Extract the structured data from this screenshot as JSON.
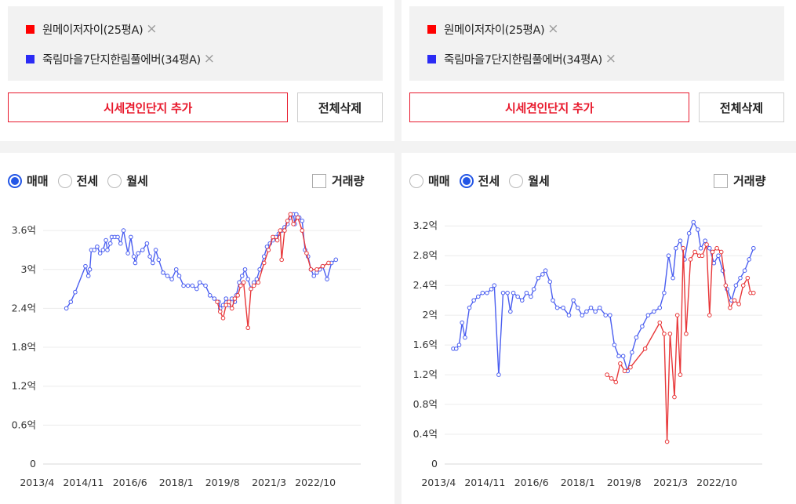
{
  "panels": [
    {
      "legend": [
        {
          "label": "원메이저자이(25평A)",
          "color": "#ff0000"
        },
        {
          "label": "죽림마을7단지한림풀에버(34평A)",
          "color": "#2b2bf5"
        }
      ],
      "remove_icon": "×",
      "add_button": "시세견인단지 추가",
      "delete_all_button": "전체삭제",
      "radios": [
        {
          "label": "매매",
          "selected": true
        },
        {
          "label": "전세",
          "selected": false
        },
        {
          "label": "월세",
          "selected": false
        }
      ],
      "volume_label": "거래량"
    },
    {
      "legend": [
        {
          "label": "원메이저자이(25평A)",
          "color": "#ff0000"
        },
        {
          "label": "죽림마을7단지한림풀에버(34평A)",
          "color": "#2b2bf5"
        }
      ],
      "remove_icon": "×",
      "add_button": "시세견인단지 추가",
      "delete_all_button": "전체삭제",
      "radios": [
        {
          "label": "매매",
          "selected": false
        },
        {
          "label": "전세",
          "selected": true
        },
        {
          "label": "월세",
          "selected": false
        }
      ],
      "volume_label": "거래량"
    }
  ],
  "chart_data": [
    {
      "type": "line",
      "ylim": [
        0,
        4.0
      ],
      "yticks": [
        {
          "v": 0,
          "label": "0"
        },
        {
          "v": 0.6,
          "label": "0.6억"
        },
        {
          "v": 1.2,
          "label": "1.2억"
        },
        {
          "v": 1.8,
          "label": "1.8억"
        },
        {
          "v": 2.4,
          "label": "2.4억"
        },
        {
          "v": 3.0,
          "label": "3억"
        },
        {
          "v": 3.6,
          "label": "3.6억"
        }
      ],
      "xlim": [
        2013.0,
        2024.3
      ],
      "xticks": [
        {
          "v": 2013.25,
          "label": "2013/4"
        },
        {
          "v": 2014.83,
          "label": "2014/11"
        },
        {
          "v": 2016.42,
          "label": "2016/6"
        },
        {
          "v": 2018.0,
          "label": "2018/1"
        },
        {
          "v": 2019.58,
          "label": "2019/8"
        },
        {
          "v": 2021.17,
          "label": "2021/3"
        },
        {
          "v": 2022.75,
          "label": "2022/10"
        }
      ],
      "series": [
        {
          "name": "죽림마을7단지한림풀에버(34평A)",
          "color": "#4a5ef0",
          "points": [
            [
              2014.25,
              2.4
            ],
            [
              2014.4,
              2.5
            ],
            [
              2014.55,
              2.65
            ],
            [
              2014.9,
              3.05
            ],
            [
              2015.0,
              2.9
            ],
            [
              2015.05,
              3.0
            ],
            [
              2015.1,
              3.3
            ],
            [
              2015.2,
              3.3
            ],
            [
              2015.3,
              3.35
            ],
            [
              2015.4,
              3.25
            ],
            [
              2015.5,
              3.3
            ],
            [
              2015.6,
              3.45
            ],
            [
              2015.65,
              3.3
            ],
            [
              2015.75,
              3.4
            ],
            [
              2015.8,
              3.5
            ],
            [
              2015.9,
              3.5
            ],
            [
              2016.0,
              3.5
            ],
            [
              2016.1,
              3.4
            ],
            [
              2016.2,
              3.6
            ],
            [
              2016.35,
              3.25
            ],
            [
              2016.45,
              3.5
            ],
            [
              2016.55,
              3.2
            ],
            [
              2016.6,
              3.1
            ],
            [
              2016.7,
              3.25
            ],
            [
              2016.85,
              3.3
            ],
            [
              2017.0,
              3.4
            ],
            [
              2017.1,
              3.2
            ],
            [
              2017.2,
              3.1
            ],
            [
              2017.3,
              3.3
            ],
            [
              2017.4,
              3.15
            ],
            [
              2017.55,
              2.95
            ],
            [
              2017.7,
              2.9
            ],
            [
              2017.85,
              2.85
            ],
            [
              2018.0,
              3.0
            ],
            [
              2018.1,
              2.9
            ],
            [
              2018.25,
              2.75
            ],
            [
              2018.4,
              2.75
            ],
            [
              2018.55,
              2.75
            ],
            [
              2018.7,
              2.7
            ],
            [
              2018.8,
              2.8
            ],
            [
              2019.0,
              2.75
            ],
            [
              2019.15,
              2.6
            ],
            [
              2019.3,
              2.55
            ],
            [
              2019.45,
              2.5
            ],
            [
              2019.5,
              2.4
            ],
            [
              2019.6,
              2.45
            ],
            [
              2019.7,
              2.55
            ],
            [
              2019.8,
              2.45
            ],
            [
              2019.9,
              2.55
            ],
            [
              2020.0,
              2.5
            ],
            [
              2020.05,
              2.6
            ],
            [
              2020.15,
              2.8
            ],
            [
              2020.25,
              2.9
            ],
            [
              2020.35,
              3.0
            ],
            [
              2020.45,
              2.85
            ],
            [
              2020.55,
              2.7
            ],
            [
              2020.65,
              2.8
            ],
            [
              2020.75,
              2.85
            ],
            [
              2020.85,
              3.0
            ],
            [
              2021.0,
              3.2
            ],
            [
              2021.1,
              3.35
            ],
            [
              2021.2,
              3.4
            ],
            [
              2021.3,
              3.45
            ],
            [
              2021.4,
              3.5
            ],
            [
              2021.5,
              3.55
            ],
            [
              2021.6,
              3.6
            ],
            [
              2021.7,
              3.65
            ],
            [
              2021.8,
              3.7
            ],
            [
              2021.9,
              3.8
            ],
            [
              2022.0,
              3.85
            ],
            [
              2022.05,
              3.7
            ],
            [
              2022.1,
              3.85
            ],
            [
              2022.2,
              3.8
            ],
            [
              2022.3,
              3.75
            ],
            [
              2022.4,
              3.3
            ],
            [
              2022.5,
              3.2
            ],
            [
              2022.6,
              3.0
            ],
            [
              2022.7,
              2.9
            ],
            [
              2022.8,
              2.95
            ],
            [
              2022.9,
              3.0
            ],
            [
              2023.0,
              3.05
            ],
            [
              2023.15,
              2.85
            ],
            [
              2023.3,
              3.1
            ],
            [
              2023.45,
              3.15
            ]
          ]
        },
        {
          "name": "원메이저자이(25평A)",
          "color": "#e8383a",
          "points": [
            [
              2019.4,
              2.5
            ],
            [
              2019.5,
              2.35
            ],
            [
              2019.6,
              2.25
            ],
            [
              2019.7,
              2.45
            ],
            [
              2019.8,
              2.5
            ],
            [
              2019.9,
              2.4
            ],
            [
              2020.0,
              2.55
            ],
            [
              2020.1,
              2.6
            ],
            [
              2020.2,
              2.75
            ],
            [
              2020.3,
              2.8
            ],
            [
              2020.45,
              2.1
            ],
            [
              2020.55,
              2.7
            ],
            [
              2020.65,
              2.75
            ],
            [
              2020.8,
              2.8
            ],
            [
              2021.0,
              3.1
            ],
            [
              2021.15,
              3.3
            ],
            [
              2021.3,
              3.5
            ],
            [
              2021.45,
              3.45
            ],
            [
              2021.55,
              3.6
            ],
            [
              2021.6,
              3.15
            ],
            [
              2021.7,
              3.6
            ],
            [
              2021.8,
              3.75
            ],
            [
              2021.9,
              3.85
            ],
            [
              2022.0,
              3.7
            ],
            [
              2022.15,
              3.8
            ],
            [
              2022.3,
              3.6
            ],
            [
              2022.45,
              3.25
            ],
            [
              2022.6,
              3.0
            ],
            [
              2022.8,
              3.0
            ],
            [
              2023.0,
              3.05
            ],
            [
              2023.2,
              3.1
            ]
          ]
        }
      ]
    },
    {
      "type": "line",
      "ylim": [
        0,
        3.35
      ],
      "yticks": [
        {
          "v": 0,
          "label": "0"
        },
        {
          "v": 0.4,
          "label": "0.4억"
        },
        {
          "v": 0.8,
          "label": "0.8억"
        },
        {
          "v": 1.2,
          "label": "1.2억"
        },
        {
          "v": 1.6,
          "label": "1.6억"
        },
        {
          "v": 2.0,
          "label": "2억"
        },
        {
          "v": 2.4,
          "label": "2.4억"
        },
        {
          "v": 2.8,
          "label": "2.8억"
        },
        {
          "v": 3.2,
          "label": "3.2억"
        }
      ],
      "xlim": [
        2013.0,
        2024.3
      ],
      "xticks": [
        {
          "v": 2013.25,
          "label": "2013/4"
        },
        {
          "v": 2014.83,
          "label": "2014/11"
        },
        {
          "v": 2016.42,
          "label": "2016/6"
        },
        {
          "v": 2018.0,
          "label": "2018/1"
        },
        {
          "v": 2019.58,
          "label": "2019/8"
        },
        {
          "v": 2021.17,
          "label": "2021/3"
        },
        {
          "v": 2022.75,
          "label": "2022/10"
        }
      ],
      "series": [
        {
          "name": "죽림마을7단지한림풀에버(34평A)",
          "color": "#4a5ef0",
          "points": [
            [
              2013.75,
              1.55
            ],
            [
              2013.85,
              1.55
            ],
            [
              2013.95,
              1.6
            ],
            [
              2014.05,
              1.9
            ],
            [
              2014.15,
              1.7
            ],
            [
              2014.3,
              2.1
            ],
            [
              2014.45,
              2.2
            ],
            [
              2014.6,
              2.25
            ],
            [
              2014.75,
              2.3
            ],
            [
              2014.9,
              2.3
            ],
            [
              2015.05,
              2.35
            ],
            [
              2015.15,
              2.4
            ],
            [
              2015.3,
              1.2
            ],
            [
              2015.45,
              2.3
            ],
            [
              2015.6,
              2.3
            ],
            [
              2015.7,
              2.05
            ],
            [
              2015.8,
              2.3
            ],
            [
              2015.95,
              2.25
            ],
            [
              2016.1,
              2.2
            ],
            [
              2016.25,
              2.3
            ],
            [
              2016.4,
              2.25
            ],
            [
              2016.5,
              2.35
            ],
            [
              2016.65,
              2.5
            ],
            [
              2016.8,
              2.55
            ],
            [
              2016.9,
              2.6
            ],
            [
              2017.05,
              2.45
            ],
            [
              2017.15,
              2.2
            ],
            [
              2017.3,
              2.1
            ],
            [
              2017.5,
              2.1
            ],
            [
              2017.7,
              2.0
            ],
            [
              2017.85,
              2.2
            ],
            [
              2018.0,
              2.1
            ],
            [
              2018.15,
              2.0
            ],
            [
              2018.3,
              2.05
            ],
            [
              2018.45,
              2.1
            ],
            [
              2018.6,
              2.05
            ],
            [
              2018.75,
              2.1
            ],
            [
              2018.95,
              2.0
            ],
            [
              2019.1,
              2.0
            ],
            [
              2019.25,
              1.6
            ],
            [
              2019.4,
              1.45
            ],
            [
              2019.55,
              1.45
            ],
            [
              2019.7,
              1.25
            ],
            [
              2019.85,
              1.5
            ],
            [
              2020.0,
              1.7
            ],
            [
              2020.2,
              1.85
            ],
            [
              2020.4,
              2.0
            ],
            [
              2020.6,
              2.05
            ],
            [
              2020.8,
              2.1
            ],
            [
              2020.95,
              2.3
            ],
            [
              2021.1,
              2.8
            ],
            [
              2021.25,
              2.5
            ],
            [
              2021.35,
              2.9
            ],
            [
              2021.5,
              3.0
            ],
            [
              2021.65,
              2.75
            ],
            [
              2021.8,
              3.1
            ],
            [
              2021.95,
              3.25
            ],
            [
              2022.1,
              3.15
            ],
            [
              2022.2,
              2.9
            ],
            [
              2022.35,
              3.0
            ],
            [
              2022.5,
              2.9
            ],
            [
              2022.65,
              2.7
            ],
            [
              2022.8,
              2.8
            ],
            [
              2022.95,
              2.6
            ],
            [
              2023.1,
              2.35
            ],
            [
              2023.25,
              2.2
            ],
            [
              2023.4,
              2.4
            ],
            [
              2023.55,
              2.5
            ],
            [
              2023.7,
              2.6
            ],
            [
              2023.85,
              2.75
            ],
            [
              2024.0,
              2.9
            ]
          ]
        },
        {
          "name": "원메이저자이(25평A)",
          "color": "#e8383a",
          "points": [
            [
              2019.0,
              1.2
            ],
            [
              2019.15,
              1.15
            ],
            [
              2019.3,
              1.1
            ],
            [
              2019.45,
              1.35
            ],
            [
              2019.6,
              1.25
            ],
            [
              2019.8,
              1.3
            ],
            [
              2020.3,
              1.55
            ],
            [
              2020.8,
              1.9
            ],
            [
              2020.95,
              1.75
            ],
            [
              2021.05,
              0.3
            ],
            [
              2021.15,
              1.75
            ],
            [
              2021.3,
              0.9
            ],
            [
              2021.4,
              2.0
            ],
            [
              2021.5,
              1.2
            ],
            [
              2021.6,
              2.9
            ],
            [
              2021.7,
              1.75
            ],
            [
              2021.85,
              2.75
            ],
            [
              2022.0,
              2.85
            ],
            [
              2022.15,
              2.8
            ],
            [
              2022.25,
              2.8
            ],
            [
              2022.4,
              2.95
            ],
            [
              2022.5,
              2.0
            ],
            [
              2022.6,
              2.85
            ],
            [
              2022.75,
              2.9
            ],
            [
              2022.9,
              2.85
            ],
            [
              2023.05,
              2.4
            ],
            [
              2023.2,
              2.1
            ],
            [
              2023.35,
              2.2
            ],
            [
              2023.5,
              2.15
            ],
            [
              2023.65,
              2.4
            ],
            [
              2023.8,
              2.5
            ],
            [
              2023.9,
              2.3
            ],
            [
              2024.0,
              2.3
            ]
          ]
        }
      ]
    }
  ]
}
